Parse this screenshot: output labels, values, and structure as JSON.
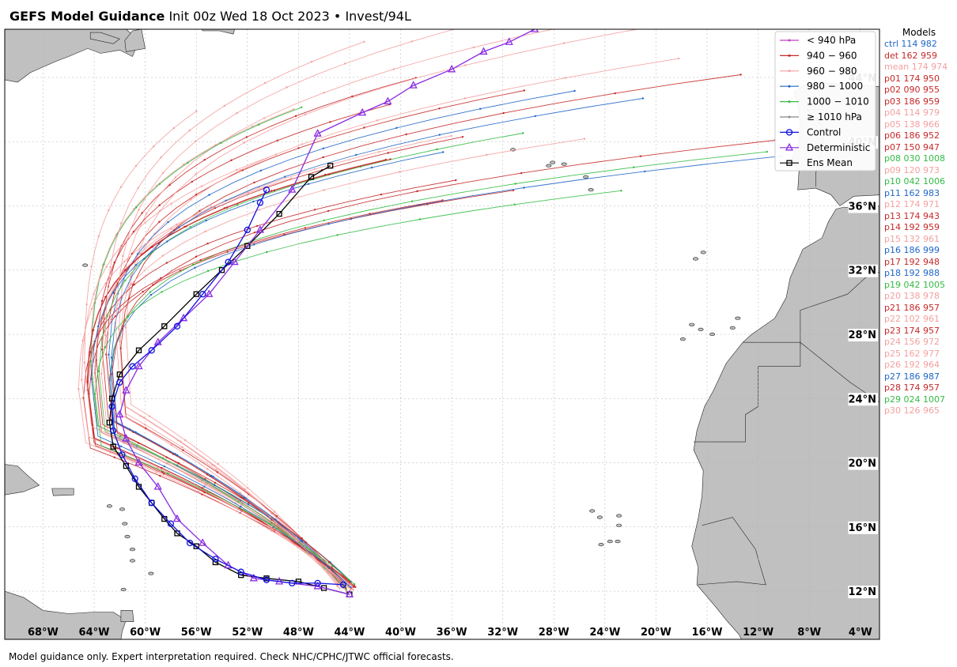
{
  "header": {
    "title_bold": "GEFS Model Guidance",
    "title_rest": "Init 00z Wed 18 Oct 2023 • Invest/94L"
  },
  "footer": {
    "note": "Model guidance only. Expert interpretation required. Check NHC/CPHC/JTWC official forecasts."
  },
  "map": {
    "projection": "plate-carree",
    "lon_range": [
      -71,
      -2.5
    ],
    "lat_range": [
      9,
      47
    ],
    "land_color": "#c0c0c0",
    "ocean_color": "#ffffff",
    "grid": true,
    "lon_ticks": [
      "68°W",
      "64°W",
      "60°W",
      "56°W",
      "52°W",
      "48°W",
      "44°W",
      "40°W",
      "36°W",
      "32°W",
      "28°W",
      "24°W",
      "20°W",
      "16°W",
      "12°W",
      "8°W",
      "4°W"
    ],
    "lon_tick_values": [
      -68,
      -64,
      -60,
      -56,
      -52,
      -48,
      -44,
      -40,
      -36,
      -32,
      -28,
      -24,
      -20,
      -16,
      -12,
      -8,
      -4
    ],
    "lat_ticks": [
      "12°N",
      "16°N",
      "20°N",
      "24°N",
      "28°N",
      "32°N",
      "36°N",
      "40°N",
      "44°N"
    ],
    "lat_tick_values": [
      12,
      16,
      20,
      24,
      28,
      32,
      36,
      40,
      44
    ]
  },
  "legend": {
    "placement": "top-right",
    "entries": [
      {
        "label": "< 940 hPa",
        "color": "#c040c0",
        "marker": "dot"
      },
      {
        "label": "940 − 960",
        "color": "#c62828",
        "marker": "dot"
      },
      {
        "label": "960 − 980",
        "color": "#f4a0a0",
        "marker": "dot"
      },
      {
        "label": "980 − 1000",
        "color": "#1f66c8",
        "marker": "dot"
      },
      {
        "label": "1000 − 1010",
        "color": "#33bb44",
        "marker": "dot"
      },
      {
        "label": "≥ 1010 hPa",
        "color": "#888888",
        "marker": "dot"
      },
      {
        "label": "Control",
        "color": "#1010e0",
        "marker": "circle"
      },
      {
        "label": "Deterministic",
        "color": "#8a2be2",
        "marker": "triangle"
      },
      {
        "label": "Ens Mean",
        "color": "#000000",
        "marker": "square"
      }
    ]
  },
  "models": {
    "title": "Models",
    "entries": [
      {
        "label": "ctrl 114 982",
        "color": "#1f66c8"
      },
      {
        "label": "det 162 959",
        "color": "#c62828"
      },
      {
        "label": "mean 174 974",
        "color": "#f4a0a0"
      },
      {
        "label": "p01 174 950",
        "color": "#c62828"
      },
      {
        "label": "p02 090 955",
        "color": "#c62828"
      },
      {
        "label": "p03 186 959",
        "color": "#c62828"
      },
      {
        "label": "p04 114 979",
        "color": "#f4a0a0"
      },
      {
        "label": "p05 138 966",
        "color": "#f4a0a0"
      },
      {
        "label": "p06 186 952",
        "color": "#c62828"
      },
      {
        "label": "p07 150 947",
        "color": "#c62828"
      },
      {
        "label": "p08 030 1008",
        "color": "#33bb44"
      },
      {
        "label": "p09 120 973",
        "color": "#f4a0a0"
      },
      {
        "label": "p10 042 1006",
        "color": "#33bb44"
      },
      {
        "label": "p11 162 983",
        "color": "#1f66c8"
      },
      {
        "label": "p12 174 971",
        "color": "#f4a0a0"
      },
      {
        "label": "p13 174 943",
        "color": "#c62828"
      },
      {
        "label": "p14 192 959",
        "color": "#c62828"
      },
      {
        "label": "p15 132 961",
        "color": "#f4a0a0"
      },
      {
        "label": "p16 186 999",
        "color": "#1f66c8"
      },
      {
        "label": "p17 192 948",
        "color": "#c62828"
      },
      {
        "label": "p18 192 988",
        "color": "#1f66c8"
      },
      {
        "label": "p19 042 1005",
        "color": "#33bb44"
      },
      {
        "label": "p20 138 978",
        "color": "#f4a0a0"
      },
      {
        "label": "p21 186 957",
        "color": "#c62828"
      },
      {
        "label": "p22 102 961",
        "color": "#f4a0a0"
      },
      {
        "label": "p23 174 957",
        "color": "#c62828"
      },
      {
        "label": "p24 156 972",
        "color": "#f4a0a0"
      },
      {
        "label": "p25 162 977",
        "color": "#f4a0a0"
      },
      {
        "label": "p26 192 964",
        "color": "#f4a0a0"
      },
      {
        "label": "p27 186 987",
        "color": "#1f66c8"
      },
      {
        "label": "p28 174 957",
        "color": "#c62828"
      },
      {
        "label": "p29 024 1007",
        "color": "#33bb44"
      },
      {
        "label": "p30 126 965",
        "color": "#f4a0a0"
      }
    ]
  },
  "tracks": {
    "control": [
      [
        -44.5,
        12.4
      ],
      [
        -46.5,
        12.5
      ],
      [
        -48.5,
        12.5
      ],
      [
        -50.5,
        12.7
      ],
      [
        -52.5,
        13.2
      ],
      [
        -54.5,
        14.0
      ],
      [
        -56.5,
        15.0
      ],
      [
        -58.0,
        16.2
      ],
      [
        -59.5,
        17.5
      ],
      [
        -60.8,
        19.0
      ],
      [
        -61.8,
        20.5
      ],
      [
        -62.5,
        22.0
      ],
      [
        -62.6,
        23.5
      ],
      [
        -62.0,
        25.0
      ],
      [
        -61.0,
        26.0
      ],
      [
        -59.5,
        27.0
      ],
      [
        -57.5,
        28.5
      ],
      [
        -55.5,
        30.5
      ],
      [
        -53.5,
        32.5
      ],
      [
        -52.0,
        34.5
      ],
      [
        -51.0,
        36.2
      ],
      [
        -50.5,
        37.0
      ]
    ],
    "deterministic": [
      [
        -44.0,
        11.8
      ],
      [
        -46.5,
        12.3
      ],
      [
        -49.5,
        12.6
      ],
      [
        -51.5,
        12.8
      ],
      [
        -53.5,
        13.6
      ],
      [
        -55.5,
        15.0
      ],
      [
        -57.5,
        16.5
      ],
      [
        -59.0,
        18.5
      ],
      [
        -60.5,
        20.0
      ],
      [
        -61.5,
        21.5
      ],
      [
        -62.0,
        23.0
      ],
      [
        -61.5,
        24.5
      ],
      [
        -60.5,
        26.0
      ],
      [
        -59.0,
        27.5
      ],
      [
        -57.0,
        29.0
      ],
      [
        -55.0,
        30.5
      ],
      [
        -53.0,
        32.5
      ],
      [
        -51.0,
        34.5
      ],
      [
        -48.5,
        37.0
      ],
      [
        -46.5,
        40.5
      ],
      [
        -43.0,
        41.8
      ],
      [
        -41.0,
        42.5
      ],
      [
        -39.0,
        43.5
      ],
      [
        -36.0,
        44.5
      ],
      [
        -33.5,
        45.6
      ],
      [
        -31.5,
        46.2
      ],
      [
        -29.5,
        47.0
      ]
    ],
    "ens_mean": [
      [
        -44.0,
        11.8
      ],
      [
        -46.0,
        12.2
      ],
      [
        -48.0,
        12.6
      ],
      [
        -50.5,
        12.8
      ],
      [
        -52.5,
        13.0
      ],
      [
        -54.5,
        13.8
      ],
      [
        -56.0,
        14.8
      ],
      [
        -57.5,
        15.6
      ],
      [
        -58.5,
        16.5
      ],
      [
        -59.5,
        17.5
      ],
      [
        -60.5,
        18.5
      ],
      [
        -61.5,
        19.8
      ],
      [
        -62.5,
        21.0
      ],
      [
        -62.8,
        22.5
      ],
      [
        -62.6,
        24.0
      ],
      [
        -62.0,
        25.5
      ],
      [
        -60.5,
        27.0
      ],
      [
        -58.5,
        28.5
      ],
      [
        -56.0,
        30.5
      ],
      [
        -54.0,
        32.0
      ],
      [
        -52.0,
        33.5
      ],
      [
        -49.5,
        35.5
      ],
      [
        -47.0,
        37.8
      ],
      [
        -45.5,
        38.5
      ]
    ]
  }
}
